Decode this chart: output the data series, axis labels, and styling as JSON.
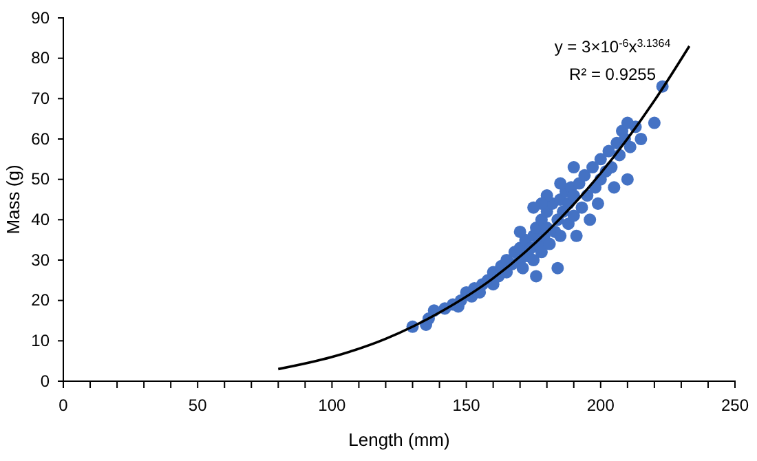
{
  "chart_data": {
    "type": "scatter",
    "xlabel": "Length (mm)",
    "ylabel": "Mass (g)",
    "xlim": [
      0,
      250
    ],
    "ylim": [
      0,
      90
    ],
    "xticks": [
      0,
      {
        "value": 10,
        "label": null
      },
      {
        "value": 20,
        "label": null
      },
      {
        "value": 30,
        "label": null
      },
      {
        "value": 40,
        "label": null
      },
      50,
      {
        "value": 60,
        "label": null
      },
      {
        "value": 70,
        "label": null
      },
      {
        "value": 80,
        "label": null
      },
      {
        "value": 90,
        "label": null
      },
      100,
      {
        "value": 110,
        "label": null
      },
      {
        "value": 120,
        "label": null
      },
      {
        "value": 130,
        "label": null
      },
      {
        "value": 140,
        "label": null
      },
      150,
      {
        "value": 160,
        "label": null
      },
      {
        "value": 170,
        "label": null
      },
      {
        "value": 180,
        "label": null
      },
      {
        "value": 190,
        "label": null
      },
      200,
      {
        "value": 210,
        "label": null
      },
      {
        "value": 220,
        "label": null
      },
      {
        "value": 230,
        "label": null
      },
      {
        "value": 240,
        "label": null
      },
      250
    ],
    "yticks": [
      0,
      10,
      20,
      30,
      40,
      50,
      60,
      70,
      80,
      90
    ],
    "grid": false,
    "annotations": [
      "y = 3×10$^{-6}$x$^{3.1364}$",
      "R² = 0.9255"
    ],
    "series": [
      {
        "color": "#4472c4",
        "marker": "circle",
        "x": [
          130,
          135,
          136,
          138,
          142,
          145,
          147,
          148,
          150,
          152,
          153,
          155,
          156,
          158,
          160,
          160,
          162,
          163,
          165,
          165,
          167,
          168,
          170,
          170,
          171,
          172,
          173,
          174,
          175,
          175,
          176,
          177,
          178,
          178,
          179,
          180,
          180,
          181,
          182,
          183,
          184,
          185,
          185,
          186,
          187,
          188,
          188,
          189,
          190,
          190,
          191,
          192,
          193,
          194,
          195,
          196,
          197,
          198,
          199,
          200,
          200,
          202,
          203,
          204,
          205,
          206,
          207,
          208,
          209,
          210,
          210,
          211,
          213,
          215,
          220,
          223,
          190,
          185,
          180,
          178,
          184,
          176,
          175,
          170
        ],
        "values": [
          13.5,
          14,
          15.5,
          17.5,
          18,
          19,
          18.5,
          20,
          22,
          21,
          23,
          22,
          24,
          25,
          24,
          27,
          26,
          28.5,
          27,
          30,
          29,
          32,
          30,
          33,
          28,
          35,
          31,
          33,
          36,
          30,
          38,
          34,
          40,
          32,
          36,
          38,
          42,
          34,
          44,
          37,
          40,
          45,
          36,
          42,
          47,
          39,
          44,
          48,
          41,
          46,
          36,
          49,
          43,
          51,
          46,
          40,
          53,
          48,
          44,
          55,
          50,
          52,
          57,
          53,
          48,
          59,
          56,
          62,
          60,
          50,
          64,
          58,
          63,
          60,
          64,
          73,
          53,
          49,
          46,
          44,
          28,
          26,
          43,
          37
        ]
      },
      {
        "type": "line",
        "color": "#000000",
        "marker": "none",
        "line_style": "solid",
        "x": [
          80,
          100,
          120,
          140,
          160,
          180,
          200,
          220,
          233
        ],
        "values": [
          3,
          6,
          10.5,
          17,
          25.5,
          37,
          51.5,
          69.5,
          83
        ]
      }
    ]
  }
}
